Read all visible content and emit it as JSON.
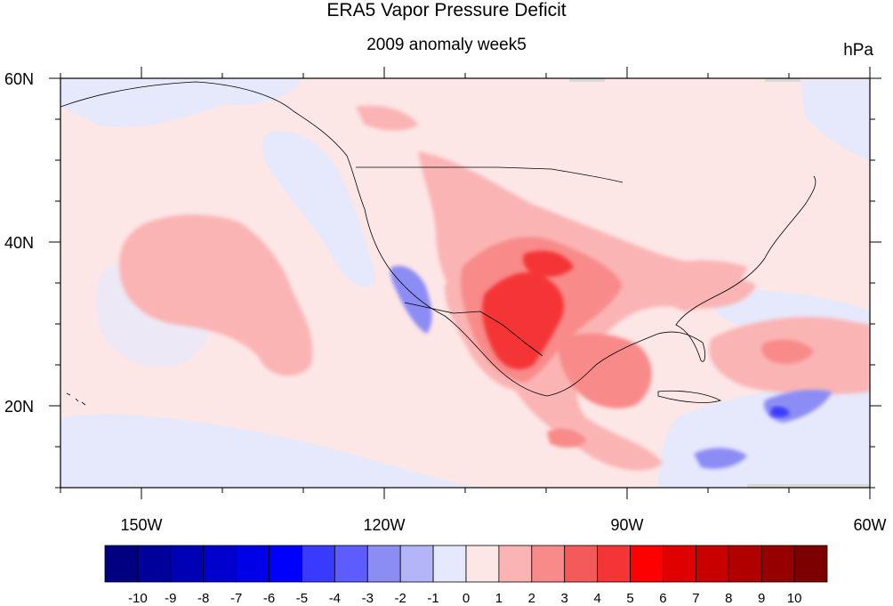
{
  "chart_data": {
    "type": "heatmap",
    "title": "ERA5 Vapor Pressure Deficit",
    "subtitle": "2009 anomaly week5",
    "units": "hPa",
    "x_axis": {
      "range": [
        -160,
        -60
      ],
      "ticks": [
        -150,
        -120,
        -90,
        -60
      ],
      "tick_labels": [
        "150W",
        "120W",
        "90W",
        "60W"
      ]
    },
    "y_axis": {
      "range": [
        10,
        60
      ],
      "ticks": [
        20,
        40,
        60
      ],
      "tick_labels": [
        "20N",
        "40N",
        "60N"
      ]
    },
    "colorbar": {
      "levels": [
        "-10",
        "-9",
        "-8",
        "-7",
        "-6",
        "-5",
        "-4",
        "-3",
        "-2",
        "-1",
        "0",
        "1",
        "2",
        "3",
        "4",
        "5",
        "6",
        "7",
        "8",
        "9",
        "10"
      ],
      "colors": [
        "#000080",
        "#00009b",
        "#0000b5",
        "#0000cf",
        "#0000e8",
        "#0000ff",
        "#3a3aff",
        "#5c5cff",
        "#8c8cf5",
        "#b4b4f8",
        "#e6e8fb",
        "#fde6e6",
        "#fbb4b4",
        "#f88a8a",
        "#f55a5a",
        "#f53535",
        "#ff0000",
        "#e00000",
        "#c80000",
        "#b00000",
        "#960000",
        "#7d0000"
      ]
    },
    "background_anomaly_color": "#fde6e6"
  }
}
